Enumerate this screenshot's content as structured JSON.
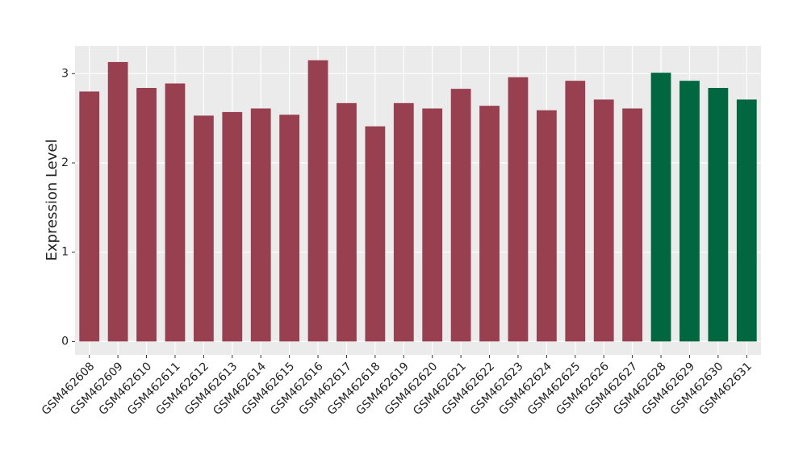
{
  "chart_data": {
    "type": "bar",
    "y_label": "Expression Level",
    "categories": [
      "GSM462608",
      "GSM462609",
      "GSM462610",
      "GSM462611",
      "GSM462612",
      "GSM462613",
      "GSM462614",
      "GSM462615",
      "GSM462616",
      "GSM462617",
      "GSM462618",
      "GSM462619",
      "GSM462620",
      "GSM462621",
      "GSM462622",
      "GSM462623",
      "GSM462624",
      "GSM462625",
      "GSM462626",
      "GSM462627",
      "GSM462628",
      "GSM462629",
      "GSM462630",
      "GSM462631"
    ],
    "values": [
      2.8,
      3.13,
      2.84,
      2.89,
      2.53,
      2.57,
      2.61,
      2.54,
      3.15,
      2.67,
      2.41,
      2.67,
      2.61,
      2.83,
      2.64,
      2.96,
      2.59,
      2.92,
      2.71,
      2.61,
      3.01,
      2.92,
      2.84,
      2.71
    ],
    "colors": [
      "#994050",
      "#994050",
      "#994050",
      "#994050",
      "#994050",
      "#994050",
      "#994050",
      "#994050",
      "#994050",
      "#994050",
      "#994050",
      "#994050",
      "#994050",
      "#994050",
      "#994050",
      "#994050",
      "#994050",
      "#994050",
      "#994050",
      "#994050",
      "#006741",
      "#006741",
      "#006741",
      "#006741"
    ],
    "ylim": [
      -0.15,
      3.31
    ],
    "yticks": [
      0,
      1,
      2,
      3
    ],
    "grid": true
  }
}
